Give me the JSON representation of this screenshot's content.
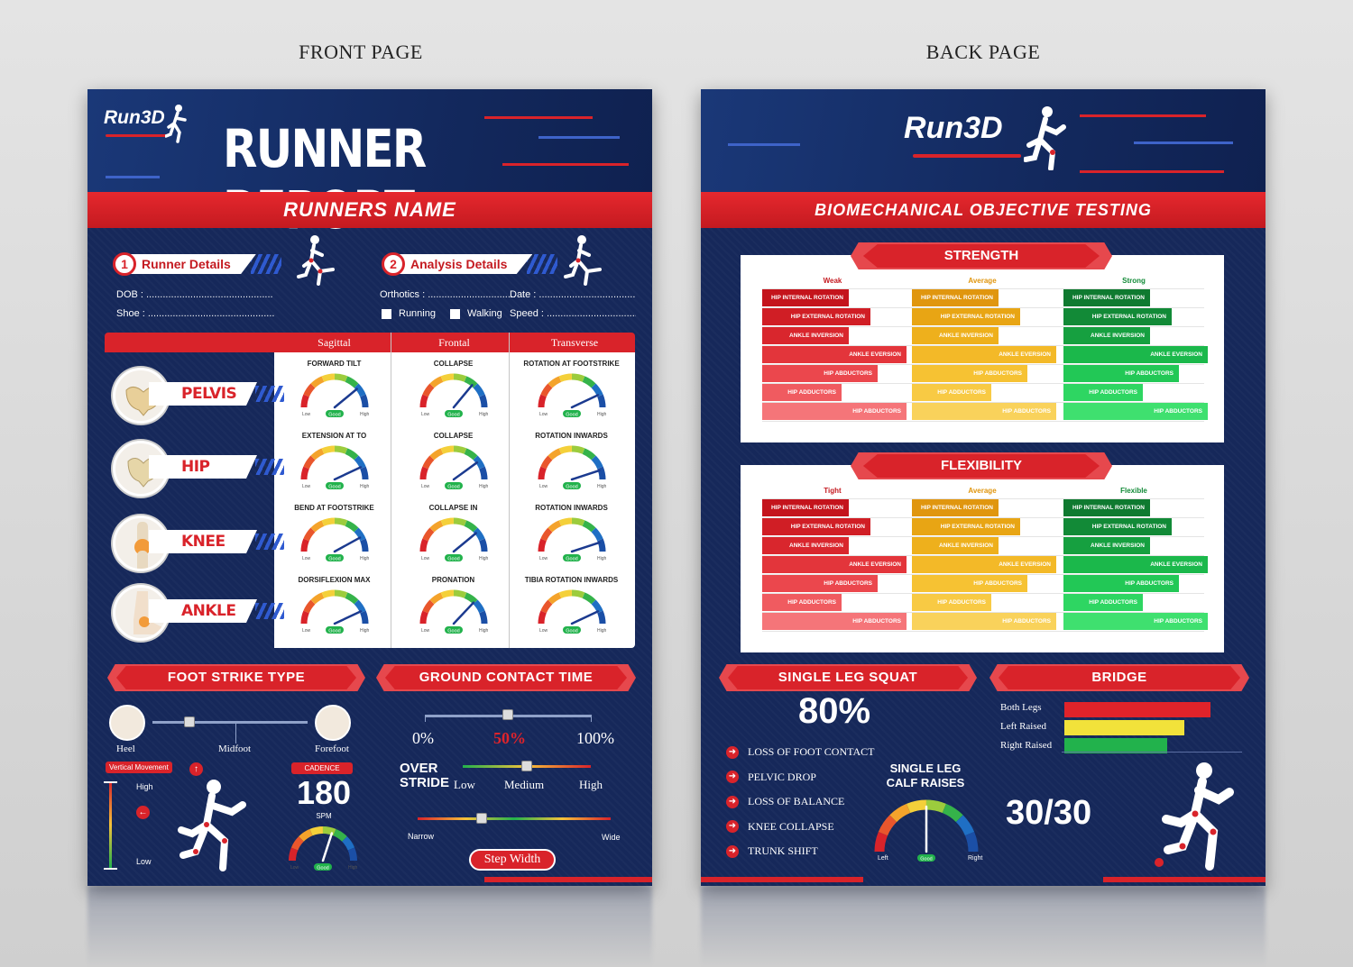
{
  "captions": {
    "front": "FRONT PAGE",
    "back": "BACK PAGE"
  },
  "front": {
    "logo": "Run3D",
    "title": "RUNNER REPORT",
    "name_bar": "RUNNERS NAME",
    "section1": {
      "num": "1",
      "label": "Runner Details",
      "dob": "DOB :",
      "shoe": "Shoe :"
    },
    "section2": {
      "num": "2",
      "label": "Analysis Details",
      "orthotics": "Orthotics :",
      "date": "Date :",
      "running": "Running",
      "walking": "Walking",
      "speed": "Speed :"
    },
    "dots": "..............................................",
    "table": {
      "headers": [
        "Sagittal",
        "Frontal",
        "Transverse"
      ],
      "joints": [
        "PELVIS",
        "HIP",
        "KNEE",
        "ANKLE"
      ],
      "gauge_low": "Low",
      "gauge_high": "High",
      "gauge_good": "Good",
      "rows": [
        {
          "cells": [
            {
              "title": "FORWARD TILT",
              "value": 0.78
            },
            {
              "title": "COLLAPSE",
              "value": 0.72
            },
            {
              "title": "ROTATION AT FOOTSTRIKE",
              "value": 0.86
            }
          ]
        },
        {
          "cells": [
            {
              "title": "EXTENSION AT TO",
              "value": 0.86
            },
            {
              "title": "COLLAPSE",
              "value": 0.8
            },
            {
              "title": "ROTATION INWARDS",
              "value": 0.9
            }
          ]
        },
        {
          "cells": [
            {
              "title": "BEND AT FOOTSTRIKE",
              "value": 0.84
            },
            {
              "title": "COLLAPSE IN",
              "value": 0.78
            },
            {
              "title": "ROTATION INWARDS",
              "value": 0.9
            }
          ]
        },
        {
          "cells": [
            {
              "title": "DORSIFLEXION MAX",
              "value": 0.86
            },
            {
              "title": "PRONATION",
              "value": 0.74
            },
            {
              "title": "TIBIA ROTATION INWARDS",
              "value": 0.86
            }
          ]
        }
      ]
    },
    "foot_strike": {
      "title": "FOOT STRIKE TYPE",
      "heel": "Heel",
      "midfoot": "Midfoot",
      "forefoot": "Forefoot",
      "position": 0.24
    },
    "vertical": {
      "label": "Vertical Movement",
      "high": "High",
      "low": "Low"
    },
    "cadence": {
      "label": "CADENCE",
      "value": "180",
      "unit": "SPM",
      "low": "Low",
      "high": "High",
      "good": "Good"
    },
    "gct": {
      "title": "GROUND CONTACT TIME",
      "min": "0%",
      "mid": "50%",
      "max": "100%",
      "position": 0.5
    },
    "overstride": {
      "label1": "OVER",
      "label2": "STRIDE",
      "low": "Low",
      "medium": "Medium",
      "high": "High",
      "position": 0.5
    },
    "step_width": {
      "narrow": "Narrow",
      "wide": "Wide",
      "label": "Step Width",
      "position": 0.33
    }
  },
  "back": {
    "logo": "Run3D",
    "header_bar": "BIOMECHANICAL OBJECTIVE TESTING",
    "strength": {
      "title": "STRENGTH",
      "cols": [
        "Weak",
        "Average",
        "Strong"
      ]
    },
    "flexibility": {
      "title": "FLEXIBILITY",
      "cols": [
        "Tight",
        "Average",
        "Flexible"
      ]
    },
    "bar_labels": [
      "HIP INTERNAL ROTATION",
      "HIP EXTERNAL ROTATION",
      "ANKLE INVERSION",
      "ANKLE EVERSION",
      "HIP ABDUCTORS",
      "HIP ADDUCTORS",
      "HIP ABDUCTORS"
    ],
    "bar_lengths": [
      0.6,
      0.75,
      0.6,
      1.0,
      0.8,
      0.55,
      1.0
    ],
    "colors": {
      "weak": [
        "#c4141c",
        "#d01e25",
        "#d9262d",
        "#e3353b",
        "#eb474d",
        "#f05b60",
        "#f57579"
      ],
      "avg": [
        "#e0960f",
        "#e8a514",
        "#eeb01c",
        "#f3b928",
        "#f6c233",
        "#f8ca44",
        "#f9d25b"
      ],
      "strong": [
        "#0f7a30",
        "#128a37",
        "#16a040",
        "#1bb84b",
        "#22c856",
        "#2ed662",
        "#3fe06f"
      ]
    },
    "single_leg_squat": {
      "title": "SINGLE LEG SQUAT",
      "value": "80%",
      "items": [
        "LOSS OF FOOT CONTACT",
        "PELVIC DROP",
        "LOSS OF BALANCE",
        "KNEE COLLAPSE",
        "TRUNK SHIFT"
      ]
    },
    "calf": {
      "line1": "SINGLE LEG",
      "line2": "CALF RAISES",
      "left": "Left",
      "right": "Right",
      "good": "Good"
    },
    "bridge": {
      "title": "BRIDGE",
      "rows": [
        {
          "label": "Both Legs",
          "value": 0.85,
          "color": "#e0232a"
        },
        {
          "label": "Left Raised",
          "value": 0.7,
          "color": "#f2e23a"
        },
        {
          "label": "Right Raised",
          "value": 0.6,
          "color": "#22b24c"
        }
      ],
      "score": "30/30"
    }
  }
}
